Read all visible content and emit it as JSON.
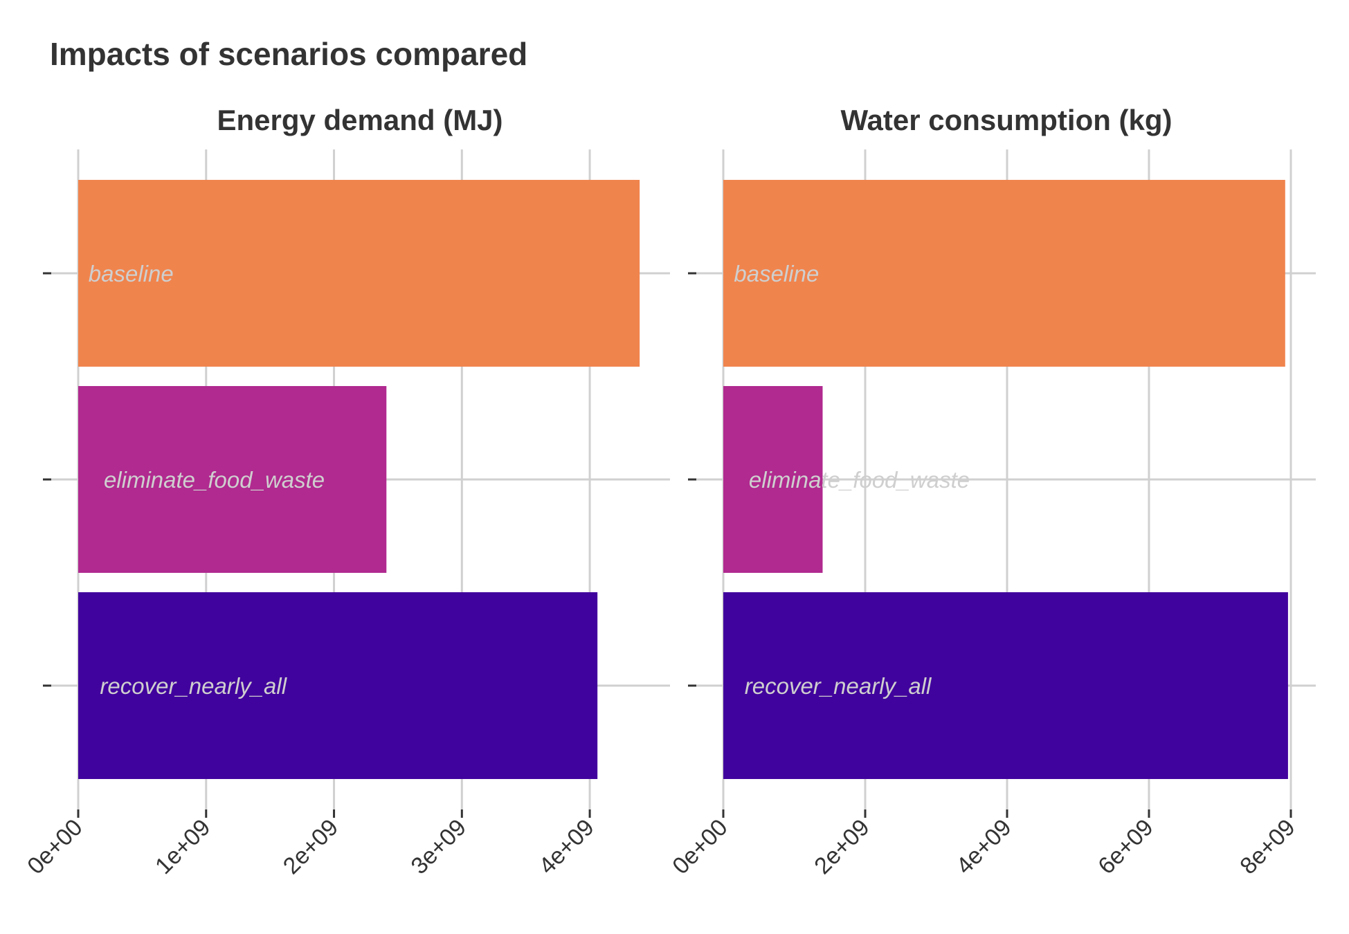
{
  "chart_data": {
    "type": "bar",
    "orientation": "horizontal",
    "title": "Impacts of scenarios compared",
    "categories": [
      "baseline",
      "eliminate_food_waste",
      "recover_nearly_all"
    ],
    "colors": [
      "#F0844D",
      "#B02A8F",
      "#41039D"
    ],
    "grid": true,
    "legend": "none",
    "panels": [
      {
        "title": "Energy demand (MJ)",
        "values": [
          4390000000,
          2410000000,
          4060000000
        ],
        "xlim": [
          0,
          4400000000
        ],
        "ticks": [
          0,
          1000000000,
          2000000000,
          3000000000,
          4000000000
        ],
        "tick_labels": [
          "0e+00",
          "1e+09",
          "2e+09",
          "3e+09",
          "4e+09"
        ],
        "label_x": [
          80000000,
          200000000,
          170000000
        ]
      },
      {
        "title": "Water consumption (kg)",
        "values": [
          7920000000,
          1400000000,
          7960000000
        ],
        "xlim": [
          0,
          8000000000
        ],
        "ticks": [
          0,
          2000000000,
          4000000000,
          6000000000,
          8000000000
        ],
        "tick_labels": [
          "0e+00",
          "2e+09",
          "4e+09",
          "6e+09",
          "8e+09"
        ],
        "label_x": [
          150000000,
          360000000,
          300000000
        ]
      }
    ]
  }
}
